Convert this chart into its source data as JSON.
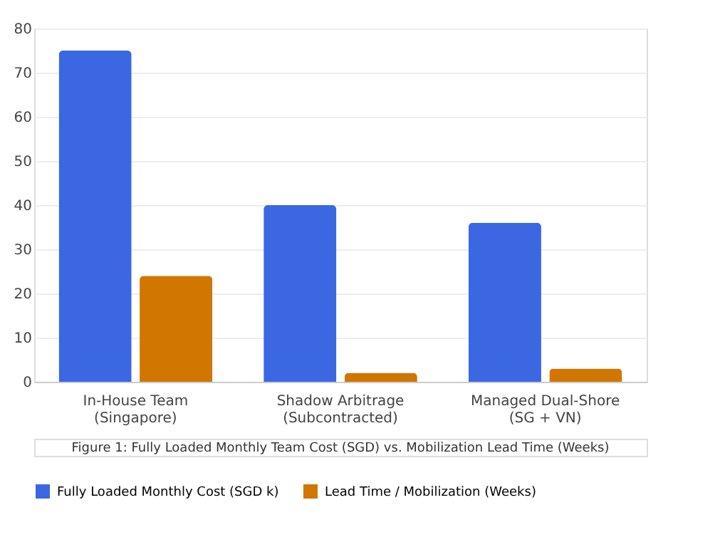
{
  "chart_data": {
    "type": "bar",
    "categories": [
      "In-House Team\n(Singapore)",
      "Shadow Arbitrage\n(Subcontracted)",
      "Managed Dual-Shore\n(SG + VN)"
    ],
    "series": [
      {
        "name": "Fully Loaded Monthly Cost (SGD k)",
        "color": "#3c67e3",
        "values": [
          75,
          40,
          36
        ]
      },
      {
        "name": "Lead Time / Mobilization (Weeks)",
        "color": "#d17600",
        "values": [
          24,
          2,
          3
        ]
      }
    ],
    "ylim": [
      0,
      80
    ],
    "yticks": [
      0,
      10,
      20,
      30,
      40,
      50,
      60,
      70,
      80
    ],
    "grid": "y",
    "legend": "bottom",
    "annotations": [
      "Figure 1: Fully Loaded Monthly Team Cost (SGD) vs. Mobilization Lead Time (Weeks)"
    ]
  }
}
